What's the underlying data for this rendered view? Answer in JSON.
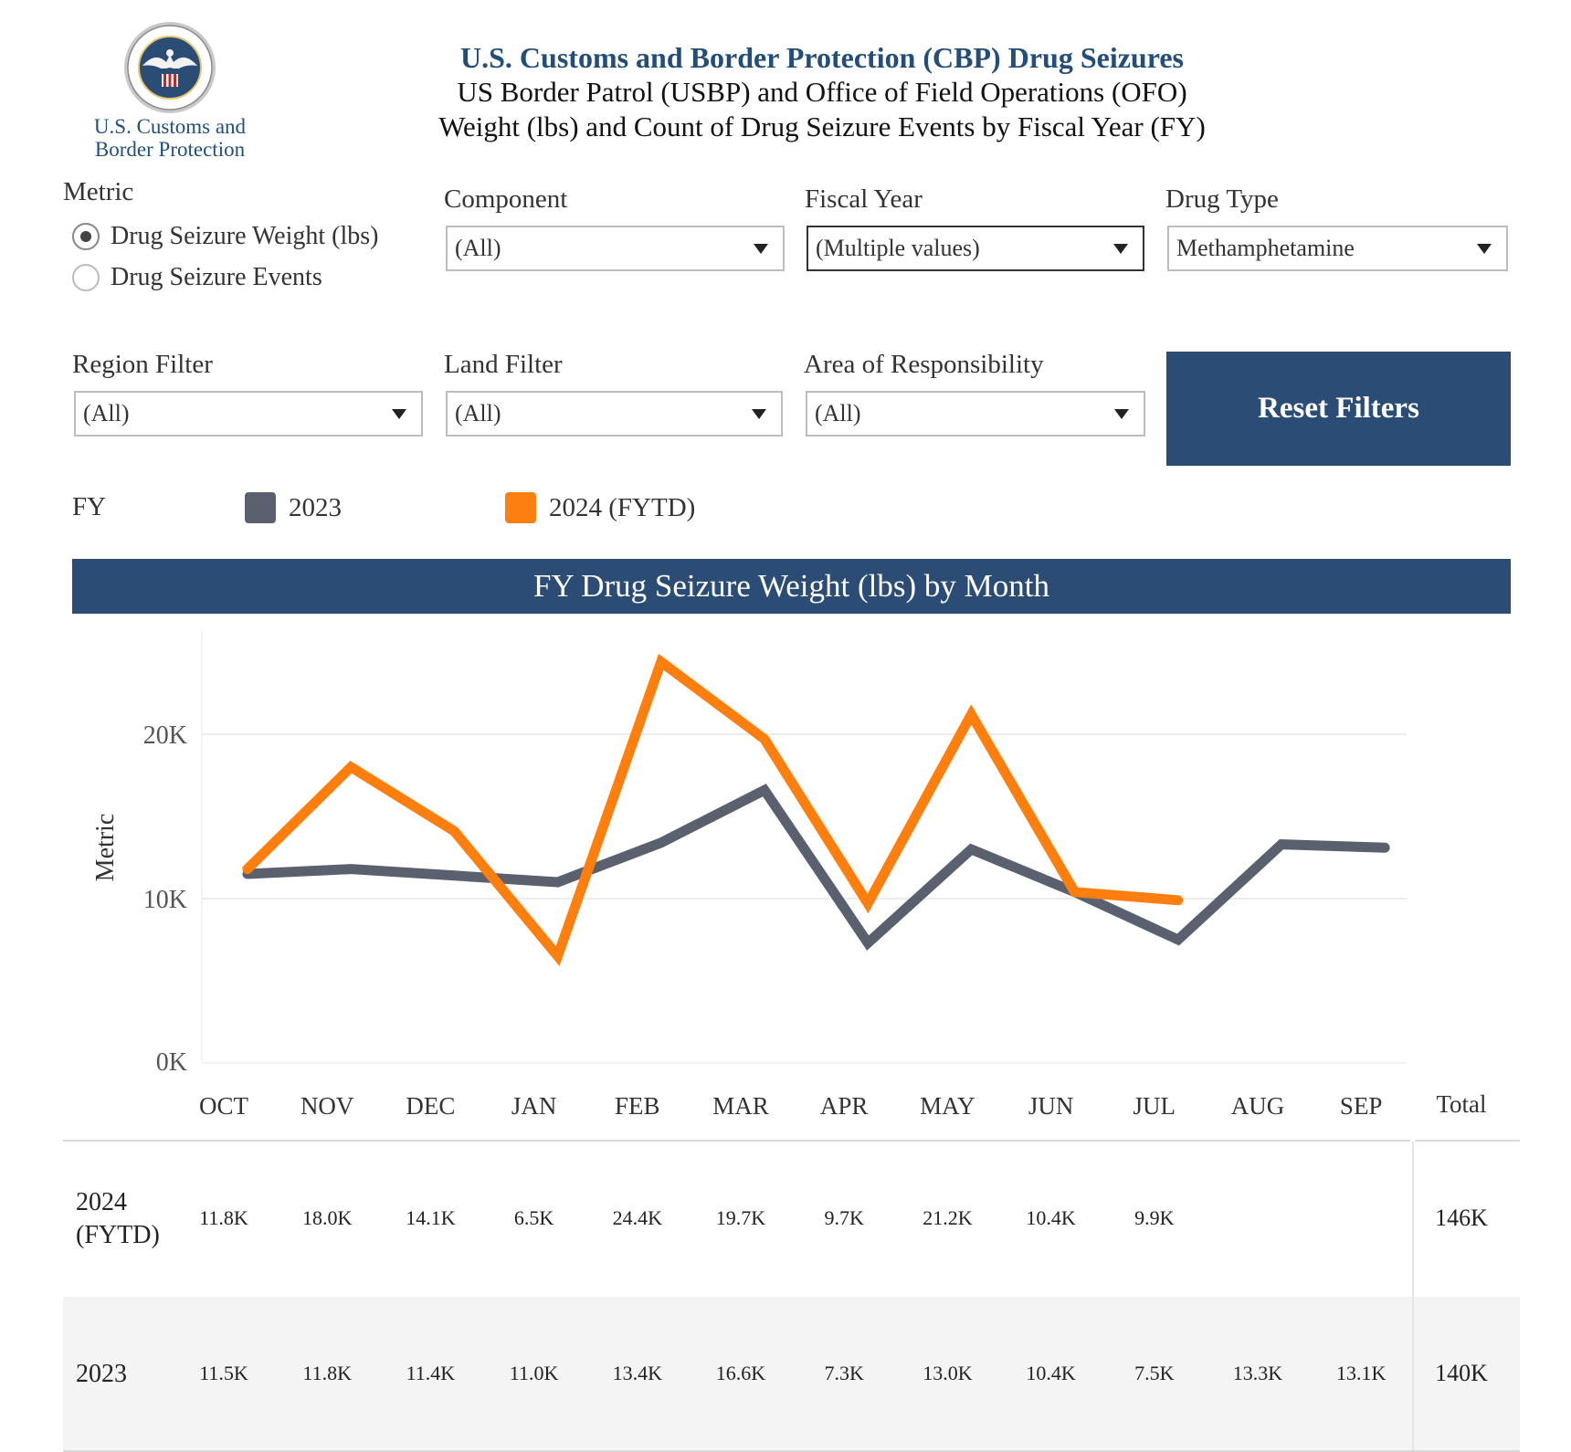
{
  "header": {
    "logo_text_line1": "U.S. Customs and",
    "logo_text_line2": "Border Protection",
    "title": "U.S. Customs and Border Protection (CBP) Drug Seizures",
    "subtitle1": "US Border Patrol (USBP) and Office of Field Operations (OFO)",
    "subtitle2": "Weight (lbs) and Count of Drug Seizure Events by Fiscal Year (FY)"
  },
  "filters": {
    "metric": {
      "label": "Metric",
      "options": [
        "Drug Seizure Weight (lbs)",
        "Drug Seizure Events"
      ],
      "selected_index": 0
    },
    "component": {
      "label": "Component",
      "value": "(All)"
    },
    "fiscal_year": {
      "label": "Fiscal Year",
      "value": "(Multiple values)"
    },
    "drug_type": {
      "label": "Drug Type",
      "value": "Methamphetamine"
    },
    "region": {
      "label": "Region Filter",
      "value": "(All)"
    },
    "land": {
      "label": "Land Filter",
      "value": "(All)"
    },
    "aor": {
      "label": "Area of Responsibility",
      "value": "(All)"
    },
    "reset_label": "Reset Filters"
  },
  "legend": {
    "label": "FY",
    "items": [
      {
        "name": "2023",
        "color": "#5a606d"
      },
      {
        "name": "2024 (FYTD)",
        "color": "#ff7f0e"
      }
    ]
  },
  "chart_banner": "FY Drug Seizure Weight (lbs) by Month",
  "chart_data": {
    "type": "line",
    "title": "FY Drug Seizure Weight (lbs) by Month",
    "xlabel": "",
    "ylabel": "Metric",
    "categories": [
      "OCT",
      "NOV",
      "DEC",
      "JAN",
      "FEB",
      "MAR",
      "APR",
      "MAY",
      "JUN",
      "JUL",
      "AUG",
      "SEP"
    ],
    "series": [
      {
        "name": "2023",
        "color": "#5a606d",
        "values": [
          11500,
          11800,
          11400,
          11000,
          13400,
          16600,
          7300,
          13000,
          10400,
          7500,
          13300,
          13100
        ]
      },
      {
        "name": "2024 (FYTD)",
        "color": "#ff7f0e",
        "values": [
          11800,
          18000,
          14100,
          6500,
          24400,
          19700,
          9700,
          21200,
          10400,
          9900,
          null,
          null
        ]
      }
    ],
    "yticks": [
      0,
      10000,
      20000
    ],
    "ytick_labels": [
      "0K",
      "10K",
      "20K"
    ],
    "ylim": [
      0,
      26000
    ],
    "grid": true
  },
  "table": {
    "months": [
      "OCT",
      "NOV",
      "DEC",
      "JAN",
      "FEB",
      "MAR",
      "APR",
      "MAY",
      "JUN",
      "JUL",
      "AUG",
      "SEP"
    ],
    "total_header": "Total",
    "rows": [
      {
        "label_line1": "2024",
        "label_line2": "(FYTD)",
        "values": [
          "11.8K",
          "18.0K",
          "14.1K",
          "6.5K",
          "24.4K",
          "19.7K",
          "9.7K",
          "21.2K",
          "10.4K",
          "9.9K",
          "",
          ""
        ],
        "total": "146K"
      },
      {
        "label_line1": "2023",
        "label_line2": "",
        "values": [
          "11.5K",
          "11.8K",
          "11.4K",
          "11.0K",
          "13.4K",
          "16.6K",
          "7.3K",
          "13.0K",
          "10.4K",
          "7.5K",
          "13.3K",
          "13.1K"
        ],
        "total": "140K"
      }
    ]
  }
}
